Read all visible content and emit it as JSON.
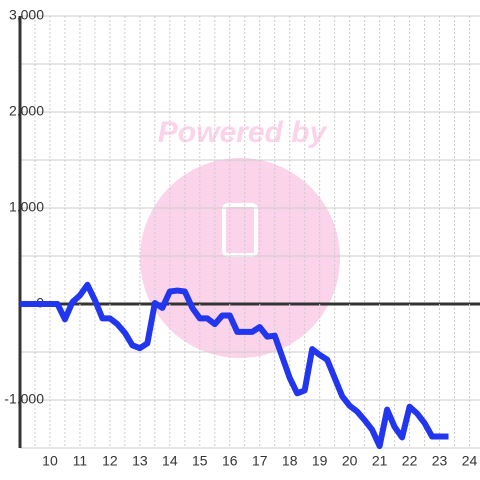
{
  "chart_data": {
    "type": "line",
    "watermark": "Powered by",
    "x": [
      9,
      10.25,
      10.5,
      10.75,
      11,
      11.25,
      11.5,
      11.75,
      12,
      12.25,
      12.5,
      12.75,
      13,
      13.25,
      13.5,
      13.75,
      14,
      14.25,
      14.5,
      14.75,
      15,
      15.25,
      15.5,
      15.75,
      16,
      16.25,
      16.5,
      16.75,
      17,
      17.25,
      17.5,
      17.75,
      18,
      18.25,
      18.5,
      18.75,
      19,
      19.25,
      19.5,
      19.75,
      20,
      20.25,
      20.5,
      20.75,
      21,
      21.25,
      21.5,
      21.75,
      22,
      22.25,
      22.5,
      22.75,
      23,
      23.3
    ],
    "series": [
      {
        "color": "#2236f0",
        "values": [
          0,
          0,
          -160,
          20,
          90,
          200,
          40,
          -150,
          -150,
          -210,
          -300,
          -430,
          -460,
          -410,
          10,
          -40,
          130,
          140,
          130,
          -40,
          -150,
          -150,
          -210,
          -120,
          -120,
          -290,
          -290,
          -290,
          -240,
          -340,
          -330,
          -550,
          -770,
          -930,
          -900,
          -470,
          -530,
          -580,
          -770,
          -960,
          -1060,
          -1120,
          -1210,
          -1310,
          -1480,
          -1100,
          -1280,
          -1390,
          -1070,
          -1140,
          -1240,
          -1380,
          -1380,
          -1380
        ]
      }
    ],
    "xlim": [
      9,
      24.35
    ],
    "xticks": [
      10,
      11,
      12,
      13,
      14,
      15,
      16,
      17,
      18,
      19,
      20,
      21,
      22,
      23,
      24
    ],
    "xgrid": [
      9.5,
      10.5,
      11.5,
      12.5,
      13.5,
      14.5,
      15.5,
      16.5,
      17.5,
      18.5,
      19.5,
      20.5,
      21.5,
      22.5,
      23.5
    ],
    "ylim": [
      -1500,
      3000
    ],
    "yticks": [
      {
        "value": -1000,
        "label": "-1,000"
      },
      0,
      {
        "value": 1000,
        "label": "1,000"
      },
      {
        "value": 2000,
        "label": "2,000"
      },
      {
        "value": 3000,
        "label": "3,000"
      }
    ],
    "ygrid": [
      -1500,
      -500,
      500,
      1500,
      2500
    ],
    "grid": true
  }
}
